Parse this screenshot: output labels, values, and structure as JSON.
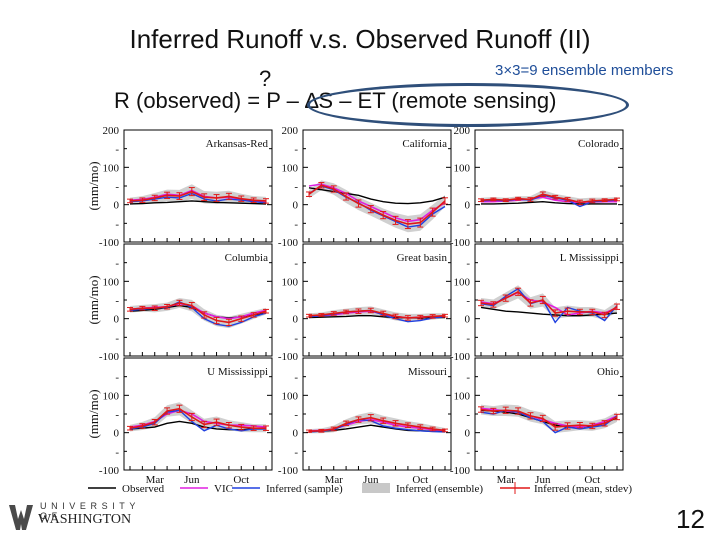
{
  "slide": {
    "title": "Inferred Runoff v.s. Observed Runoff (II)",
    "ensemble_note": "3×3=9 ensemble members",
    "equation": "R (observed) = P – ∆S – ET (remote sensing)",
    "question_mark": "?",
    "page_number": "12",
    "logo_top": "UNIVERSITY OF",
    "logo_bottom": "WASHINGTON",
    "logo_icon": "uw-w-logo-icon"
  },
  "colors": {
    "observed": "#000000",
    "vic": "#e020e0",
    "inferred_sample": "#2040e0",
    "inferred_ensemble": "#c8c8c8",
    "inferred_mean": "#e01818",
    "oval": "#2f4f7a"
  },
  "chart_data": {
    "type": "line",
    "ylabel": "(mm/mo)",
    "ylim": [
      -100,
      200
    ],
    "yticks": [
      "200",
      "-",
      "100",
      "-",
      "0",
      "-",
      "-100"
    ],
    "xticks": [
      "Mar",
      "Jun",
      "Oct"
    ],
    "months": [
      1,
      2,
      3,
      4,
      5,
      6,
      7,
      8,
      9,
      10,
      11,
      12
    ],
    "legend": {
      "placement": "bottom",
      "items": [
        {
          "key": "observed",
          "label": "Observed"
        },
        {
          "key": "vic",
          "label": "VIC"
        },
        {
          "key": "inferred_sample",
          "label": "Inferred (sample)"
        },
        {
          "key": "inferred_ensemble",
          "label": "Inferred (ensemble)"
        },
        {
          "key": "inferred_mean",
          "label": "Inferred (mean, stdev)"
        }
      ]
    },
    "panels": [
      {
        "name": "Arkansas-Red",
        "observed": [
          2,
          3,
          5,
          6,
          8,
          10,
          8,
          6,
          5,
          4,
          3,
          2
        ],
        "vic": [
          12,
          14,
          20,
          28,
          25,
          38,
          22,
          18,
          20,
          15,
          10,
          8
        ],
        "sample": [
          8,
          10,
          15,
          20,
          18,
          30,
          15,
          10,
          15,
          12,
          8,
          5
        ],
        "mean": [
          10,
          12,
          18,
          25,
          23,
          35,
          20,
          18,
          22,
          16,
          12,
          10
        ],
        "stdev": [
          8,
          10,
          12,
          14,
          15,
          18,
          15,
          15,
          14,
          12,
          10,
          10
        ]
      },
      {
        "name": "California",
        "observed": [
          45,
          40,
          35,
          30,
          25,
          15,
          8,
          4,
          3,
          5,
          10,
          20
        ],
        "vic": [
          50,
          55,
          45,
          30,
          10,
          -5,
          -20,
          -35,
          -45,
          -40,
          -15,
          5
        ],
        "sample": [
          30,
          50,
          40,
          20,
          5,
          -15,
          -30,
          -45,
          -60,
          -55,
          -25,
          -5
        ],
        "mean": [
          28,
          52,
          42,
          22,
          3,
          -12,
          -28,
          -42,
          -52,
          -48,
          -20,
          10
        ],
        "stdev": [
          10,
          12,
          14,
          16,
          16,
          16,
          16,
          18,
          20,
          20,
          18,
          14
        ]
      },
      {
        "name": "Colorado",
        "observed": [
          2,
          2,
          3,
          4,
          6,
          8,
          5,
          3,
          2,
          2,
          2,
          2
        ],
        "vic": [
          8,
          8,
          10,
          12,
          15,
          20,
          12,
          8,
          6,
          8,
          8,
          8
        ],
        "sample": [
          10,
          12,
          10,
          15,
          12,
          25,
          18,
          12,
          -5,
          8,
          10,
          12
        ],
        "mean": [
          12,
          14,
          12,
          16,
          14,
          28,
          20,
          14,
          6,
          10,
          12,
          14
        ],
        "stdev": [
          6,
          6,
          6,
          6,
          8,
          10,
          8,
          8,
          10,
          8,
          6,
          6
        ]
      },
      {
        "name": "Columbia",
        "observed": [
          20,
          22,
          25,
          30,
          35,
          30,
          15,
          5,
          2,
          5,
          10,
          15
        ],
        "vic": [
          25,
          28,
          30,
          32,
          40,
          35,
          15,
          5,
          0,
          5,
          15,
          22
        ],
        "sample": [
          22,
          25,
          28,
          30,
          45,
          30,
          0,
          -15,
          -20,
          -10,
          5,
          15
        ],
        "mean": [
          25,
          28,
          28,
          32,
          42,
          35,
          10,
          -5,
          -10,
          0,
          10,
          20
        ],
        "stdev": [
          8,
          8,
          10,
          10,
          12,
          14,
          14,
          14,
          14,
          12,
          10,
          8
        ]
      },
      {
        "name": "Great basin",
        "observed": [
          3,
          4,
          5,
          6,
          8,
          8,
          5,
          3,
          2,
          2,
          3,
          3
        ],
        "vic": [
          6,
          8,
          10,
          15,
          18,
          20,
          12,
          6,
          2,
          4,
          6,
          6
        ],
        "sample": [
          5,
          8,
          12,
          18,
          20,
          22,
          10,
          0,
          -8,
          -5,
          2,
          5
        ],
        "mean": [
          8,
          10,
          14,
          18,
          20,
          22,
          14,
          6,
          2,
          4,
          6,
          8
        ],
        "stdev": [
          6,
          6,
          8,
          8,
          10,
          10,
          10,
          10,
          10,
          8,
          8,
          6
        ]
      },
      {
        "name": "L Mississippi",
        "observed": [
          30,
          25,
          20,
          18,
          15,
          12,
          10,
          8,
          8,
          10,
          12,
          15
        ],
        "vic": [
          45,
          40,
          55,
          70,
          50,
          45,
          30,
          10,
          15,
          20,
          15,
          30
        ],
        "sample": [
          40,
          35,
          60,
          80,
          40,
          50,
          -10,
          30,
          20,
          15,
          -5,
          35
        ],
        "mean": [
          42,
          38,
          55,
          72,
          42,
          50,
          15,
          20,
          18,
          18,
          10,
          32
        ],
        "stdev": [
          12,
          12,
          14,
          16,
          14,
          16,
          14,
          14,
          12,
          12,
          12,
          12
        ]
      },
      {
        "name": "U Mississippi",
        "observed": [
          10,
          12,
          15,
          25,
          30,
          25,
          15,
          10,
          8,
          8,
          10,
          10
        ],
        "vic": [
          15,
          20,
          30,
          50,
          60,
          50,
          30,
          25,
          20,
          20,
          18,
          15
        ],
        "sample": [
          10,
          15,
          25,
          55,
          60,
          30,
          5,
          20,
          10,
          5,
          10,
          10
        ],
        "mean": [
          12,
          18,
          28,
          58,
          64,
          42,
          22,
          28,
          20,
          15,
          12,
          12
        ],
        "stdev": [
          8,
          10,
          12,
          14,
          16,
          16,
          14,
          14,
          12,
          12,
          10,
          10
        ]
      },
      {
        "name": "Missouri",
        "observed": [
          3,
          4,
          6,
          10,
          15,
          20,
          15,
          10,
          6,
          5,
          4,
          3
        ],
        "vic": [
          5,
          6,
          10,
          20,
          30,
          35,
          28,
          20,
          15,
          12,
          8,
          6
        ],
        "sample": [
          2,
          4,
          8,
          22,
          35,
          32,
          18,
          12,
          8,
          5,
          3,
          2
        ],
        "mean": [
          4,
          5,
          10,
          25,
          35,
          40,
          32,
          25,
          20,
          15,
          10,
          6
        ],
        "stdev": [
          5,
          6,
          8,
          10,
          12,
          14,
          12,
          12,
          10,
          10,
          8,
          6
        ]
      },
      {
        "name": "Ohio",
        "observed": [
          60,
          58,
          55,
          50,
          40,
          30,
          20,
          15,
          15,
          18,
          25,
          40
        ],
        "vic": [
          65,
          62,
          58,
          55,
          45,
          35,
          25,
          18,
          15,
          20,
          30,
          45
        ],
        "sample": [
          55,
          50,
          60,
          55,
          40,
          30,
          0,
          15,
          10,
          15,
          20,
          45
        ],
        "mean": [
          62,
          58,
          60,
          58,
          45,
          38,
          15,
          18,
          20,
          18,
          25,
          42
        ],
        "stdev": [
          12,
          12,
          14,
          14,
          14,
          14,
          14,
          14,
          12,
          12,
          12,
          12
        ]
      }
    ]
  }
}
